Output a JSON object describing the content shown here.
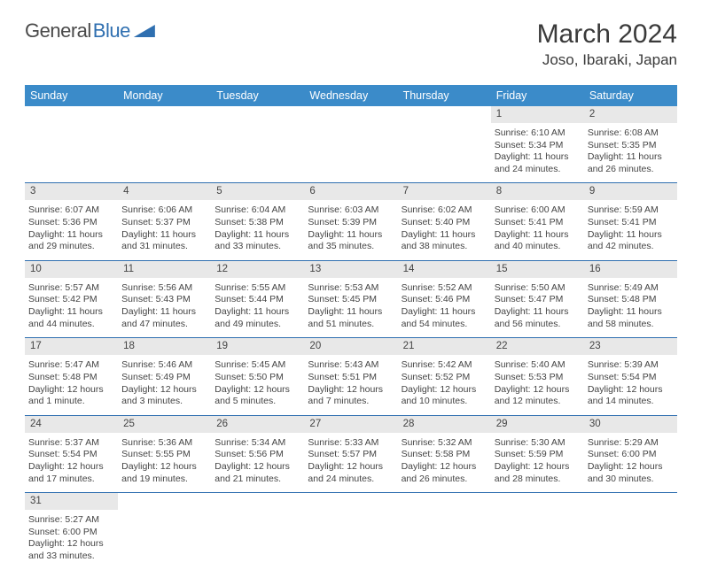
{
  "logo": {
    "text1": "General",
    "text2": "Blue"
  },
  "title": "March 2024",
  "location": "Joso, Ibaraki, Japan",
  "dayHeaders": [
    "Sunday",
    "Monday",
    "Tuesday",
    "Wednesday",
    "Thursday",
    "Friday",
    "Saturday"
  ],
  "colors": {
    "headerBg": "#3b8bc9",
    "rowBg": "#e8e8e8",
    "accent": "#2f6fb0"
  },
  "weeks": [
    [
      null,
      null,
      null,
      null,
      null,
      {
        "n": "1",
        "sr": "6:10 AM",
        "ss": "5:34 PM",
        "dl": "11 hours and 24 minutes."
      },
      {
        "n": "2",
        "sr": "6:08 AM",
        "ss": "5:35 PM",
        "dl": "11 hours and 26 minutes."
      }
    ],
    [
      {
        "n": "3",
        "sr": "6:07 AM",
        "ss": "5:36 PM",
        "dl": "11 hours and 29 minutes."
      },
      {
        "n": "4",
        "sr": "6:06 AM",
        "ss": "5:37 PM",
        "dl": "11 hours and 31 minutes."
      },
      {
        "n": "5",
        "sr": "6:04 AM",
        "ss": "5:38 PM",
        "dl": "11 hours and 33 minutes."
      },
      {
        "n": "6",
        "sr": "6:03 AM",
        "ss": "5:39 PM",
        "dl": "11 hours and 35 minutes."
      },
      {
        "n": "7",
        "sr": "6:02 AM",
        "ss": "5:40 PM",
        "dl": "11 hours and 38 minutes."
      },
      {
        "n": "8",
        "sr": "6:00 AM",
        "ss": "5:41 PM",
        "dl": "11 hours and 40 minutes."
      },
      {
        "n": "9",
        "sr": "5:59 AM",
        "ss": "5:41 PM",
        "dl": "11 hours and 42 minutes."
      }
    ],
    [
      {
        "n": "10",
        "sr": "5:57 AM",
        "ss": "5:42 PM",
        "dl": "11 hours and 44 minutes."
      },
      {
        "n": "11",
        "sr": "5:56 AM",
        "ss": "5:43 PM",
        "dl": "11 hours and 47 minutes."
      },
      {
        "n": "12",
        "sr": "5:55 AM",
        "ss": "5:44 PM",
        "dl": "11 hours and 49 minutes."
      },
      {
        "n": "13",
        "sr": "5:53 AM",
        "ss": "5:45 PM",
        "dl": "11 hours and 51 minutes."
      },
      {
        "n": "14",
        "sr": "5:52 AM",
        "ss": "5:46 PM",
        "dl": "11 hours and 54 minutes."
      },
      {
        "n": "15",
        "sr": "5:50 AM",
        "ss": "5:47 PM",
        "dl": "11 hours and 56 minutes."
      },
      {
        "n": "16",
        "sr": "5:49 AM",
        "ss": "5:48 PM",
        "dl": "11 hours and 58 minutes."
      }
    ],
    [
      {
        "n": "17",
        "sr": "5:47 AM",
        "ss": "5:48 PM",
        "dl": "12 hours and 1 minute."
      },
      {
        "n": "18",
        "sr": "5:46 AM",
        "ss": "5:49 PM",
        "dl": "12 hours and 3 minutes."
      },
      {
        "n": "19",
        "sr": "5:45 AM",
        "ss": "5:50 PM",
        "dl": "12 hours and 5 minutes."
      },
      {
        "n": "20",
        "sr": "5:43 AM",
        "ss": "5:51 PM",
        "dl": "12 hours and 7 minutes."
      },
      {
        "n": "21",
        "sr": "5:42 AM",
        "ss": "5:52 PM",
        "dl": "12 hours and 10 minutes."
      },
      {
        "n": "22",
        "sr": "5:40 AM",
        "ss": "5:53 PM",
        "dl": "12 hours and 12 minutes."
      },
      {
        "n": "23",
        "sr": "5:39 AM",
        "ss": "5:54 PM",
        "dl": "12 hours and 14 minutes."
      }
    ],
    [
      {
        "n": "24",
        "sr": "5:37 AM",
        "ss": "5:54 PM",
        "dl": "12 hours and 17 minutes."
      },
      {
        "n": "25",
        "sr": "5:36 AM",
        "ss": "5:55 PM",
        "dl": "12 hours and 19 minutes."
      },
      {
        "n": "26",
        "sr": "5:34 AM",
        "ss": "5:56 PM",
        "dl": "12 hours and 21 minutes."
      },
      {
        "n": "27",
        "sr": "5:33 AM",
        "ss": "5:57 PM",
        "dl": "12 hours and 24 minutes."
      },
      {
        "n": "28",
        "sr": "5:32 AM",
        "ss": "5:58 PM",
        "dl": "12 hours and 26 minutes."
      },
      {
        "n": "29",
        "sr": "5:30 AM",
        "ss": "5:59 PM",
        "dl": "12 hours and 28 minutes."
      },
      {
        "n": "30",
        "sr": "5:29 AM",
        "ss": "6:00 PM",
        "dl": "12 hours and 30 minutes."
      }
    ],
    [
      {
        "n": "31",
        "sr": "5:27 AM",
        "ss": "6:00 PM",
        "dl": "12 hours and 33 minutes."
      },
      null,
      null,
      null,
      null,
      null,
      null
    ]
  ],
  "labels": {
    "sunrise": "Sunrise: ",
    "sunset": "Sunset: ",
    "daylight": "Daylight: "
  }
}
